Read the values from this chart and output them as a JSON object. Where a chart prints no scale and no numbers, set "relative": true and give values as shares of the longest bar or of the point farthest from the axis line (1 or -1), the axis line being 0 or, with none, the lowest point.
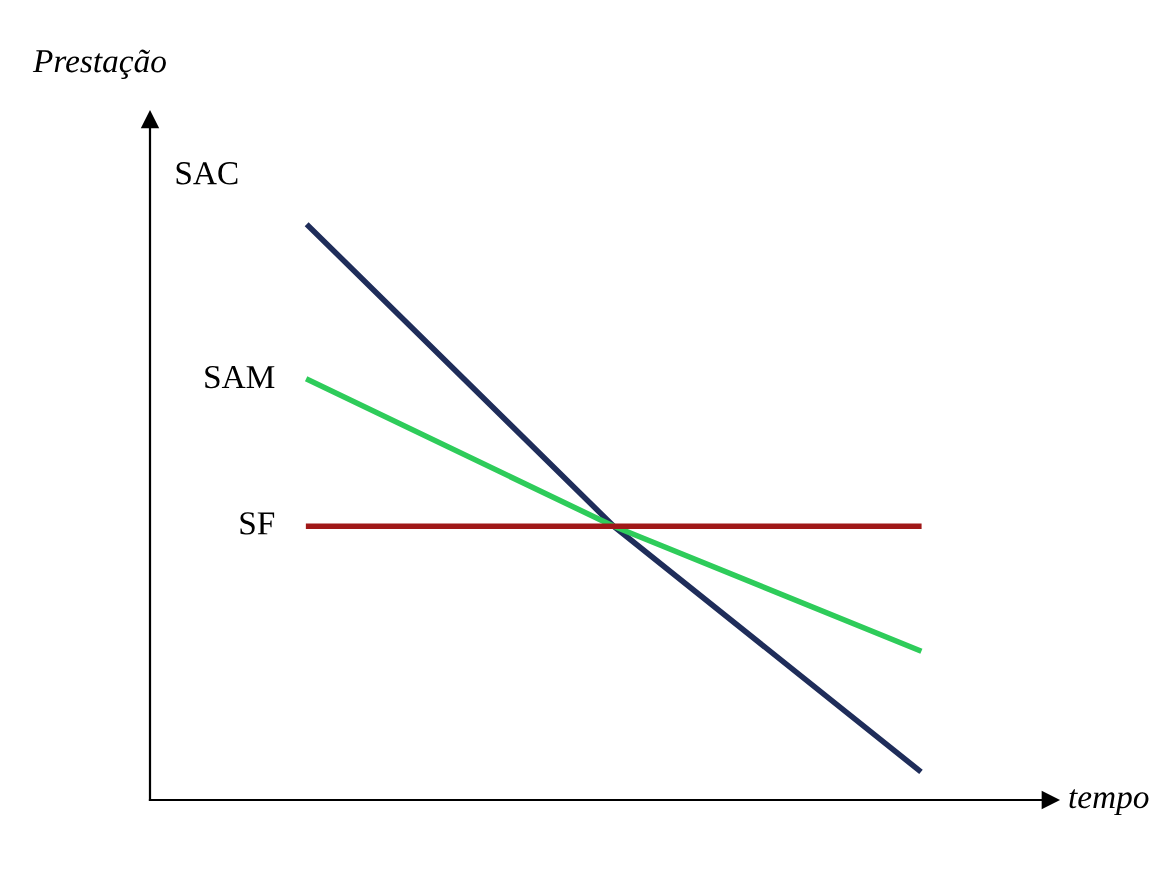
{
  "chart_data": {
    "type": "line",
    "relative": true,
    "xlabel": "tempo",
    "ylabel": "Prestação",
    "categories": [
      null,
      null,
      null
    ],
    "series": [
      {
        "name": "SAC",
        "color": "#1f2d5a",
        "values": [
          1,
          0.477,
          0.052
        ]
      },
      {
        "name": "SAM",
        "color": "#2ecc5a",
        "values": [
          0.732,
          0.477,
          0.261
        ]
      },
      {
        "name": "SF",
        "color": "#a01818",
        "values": [
          0.477,
          0.477,
          0.477
        ]
      }
    ],
    "legend": false,
    "marker": "none",
    "line_style": "solid"
  }
}
